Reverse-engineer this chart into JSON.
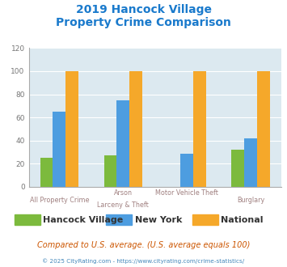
{
  "title_line1": "2019 Hancock Village",
  "title_line2": "Property Crime Comparison",
  "title_color": "#1a7acc",
  "category_labels_top": [
    "",
    "Arson",
    "Motor Vehicle Theft",
    ""
  ],
  "category_labels_bottom": [
    "All Property Crime",
    "Larceny & Theft",
    "",
    "Burglary"
  ],
  "hancock_village": [
    25,
    27,
    0,
    32
  ],
  "new_york": [
    65,
    75,
    29,
    42
  ],
  "national": [
    100,
    100,
    100,
    100
  ],
  "colors": {
    "hancock_village": "#7cba3d",
    "new_york": "#4d9de0",
    "national": "#f5a82a"
  },
  "ylim": [
    0,
    120
  ],
  "yticks": [
    0,
    20,
    40,
    60,
    80,
    100,
    120
  ],
  "legend_labels": [
    "Hancock Village",
    "New York",
    "National"
  ],
  "footnote1": "Compared to U.S. average. (U.S. average equals 100)",
  "footnote2": "© 2025 CityRating.com - https://www.cityrating.com/crime-statistics/",
  "plot_bg_color": "#dce9f0",
  "outer_bg_color": "#ffffff",
  "label_color": "#a08080",
  "grid_color": "#ffffff",
  "ytick_color": "#777777"
}
